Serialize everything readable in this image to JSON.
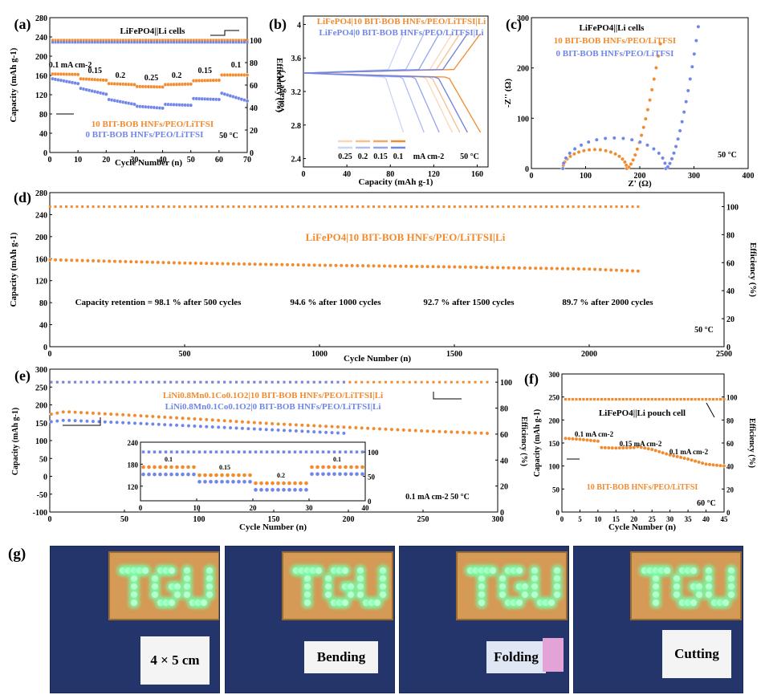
{
  "panels": {
    "a": {
      "letter": "(a)",
      "title": "LiFePO4||Li cells",
      "type": "scatter",
      "xlabel": "Cycle Number (n)",
      "ylabel": "Capacity (mAh g-1)",
      "y2label": "Efficiency (%)",
      "xlim": [
        0,
        70
      ],
      "ylim": [
        0,
        280
      ],
      "y2lim": [
        0,
        120
      ],
      "xticks": [
        0,
        10,
        20,
        30,
        40,
        50,
        60,
        70
      ],
      "yticks": [
        0,
        40,
        80,
        120,
        160,
        200,
        240,
        280
      ],
      "y2ticks": [
        0,
        20,
        40,
        60,
        80,
        100
      ],
      "rate_labels": [
        "0.1 mA cm-2",
        "0.15",
        "0.2",
        "0.25",
        "0.2",
        "0.15",
        "0.1"
      ],
      "legend": [
        "10 BIT-BOB HNFs/PEO/LiTFSI",
        "0 BIT-BOB HNFs/PEO/LiTFSI"
      ],
      "temperature": "50 °C",
      "series": [
        {
          "name": "10 BIT-BOB HNFs/PEO/LiTFSI",
          "color": "#f28a2e",
          "capacity_steps": [
            [
              1,
              10,
              163,
              162
            ],
            [
              11,
              20,
              153,
              150
            ],
            [
              21,
              30,
              143,
              141
            ],
            [
              31,
              40,
              137,
              136
            ],
            [
              41,
              50,
              141,
              142
            ],
            [
              51,
              60,
              149,
              150
            ],
            [
              61,
              70,
              161,
              161
            ]
          ],
          "efficiency": 100
        },
        {
          "name": "0 BIT-BOB HNFs/PEO/LiTFSI",
          "color": "#6f86e8",
          "capacity_steps": [
            [
              1,
              10,
              153,
              143
            ],
            [
              11,
              20,
              133,
              121
            ],
            [
              21,
              30,
              110,
              100
            ],
            [
              31,
              40,
              96,
              92
            ],
            [
              41,
              50,
              100,
              98
            ],
            [
              51,
              60,
              112,
              110
            ],
            [
              61,
              70,
              123,
              107
            ]
          ],
          "efficiency": 98
        }
      ]
    },
    "b": {
      "letter": "(b)",
      "type": "line",
      "xlabel": "Capacity (mAh g-1)",
      "ylabel": "Voltage (V)",
      "xlim": [
        0,
        170
      ],
      "ylim": [
        2.3,
        4.1
      ],
      "xticks": [
        0,
        40,
        80,
        120,
        160
      ],
      "yticks": [
        2.4,
        2.8,
        3.2,
        3.6,
        4.0
      ],
      "legend": [
        "LiFePO4|10 BIT-BOB HNFs/PEO/LiTFSI|Li",
        "LiFePO4|0 BIT-BOB HNFs/PEO/LiTFSI|Li"
      ],
      "rate_legend": [
        "0.25",
        "0.2",
        "0.15",
        "0.1"
      ],
      "rate_unit": "mA cm-2",
      "temperature": "50 °C",
      "series": [
        {
          "name": "10 BIT-BOB HNFs/PEO/LiTFSI",
          "color": "#f28a2e",
          "rates": [
            "0.25",
            "0.2",
            "0.15",
            "0.1"
          ],
          "capacities": [
            137,
            144,
            151,
            163
          ]
        },
        {
          "name": "0 BIT-BOB HNFs/PEO/LiTFSI",
          "color": "#6f86e8",
          "rates": [
            "0.25",
            "0.2",
            "0.15",
            "0.1"
          ],
          "capacities": [
            92,
            111,
            125,
            151
          ]
        }
      ]
    },
    "c": {
      "letter": "(c)",
      "title": "LiFePO4||Li cells",
      "type": "scatter",
      "xlabel": "Z' (Ω)",
      "ylabel": "-Z'' (Ω)",
      "xlim": [
        0,
        400
      ],
      "ylim": [
        0,
        300
      ],
      "xticks": [
        0,
        100,
        200,
        300,
        400
      ],
      "yticks": [
        0,
        100,
        200,
        300
      ],
      "legend": [
        "10 BIT-BOB HNFs/PEO/LiTFSI",
        "0 BIT-BOB HNFs/PEO/LiTFSI"
      ],
      "temperature": "50 °C",
      "series": [
        {
          "name": "10 BIT-BOB HNFs/PEO/LiTFSI",
          "color": "#f28a2e",
          "r0": 58,
          "r_arc": 118,
          "tail_end": [
            238,
            248
          ]
        },
        {
          "name": "0 BIT-BOB HNFs/PEO/LiTFSI",
          "color": "#6f86e8",
          "r0": 58,
          "r_arc": 190,
          "tail_end": [
            308,
            282
          ]
        }
      ]
    },
    "d": {
      "letter": "(d)",
      "title": "LiFePO4|10 BIT-BOB HNFs/PEO/LiTFSI|Li",
      "type": "scatter",
      "xlabel": "Cycle Number (n)",
      "ylabel": "Capacity (mAh g-1)",
      "y2label": "Efficiency (%)",
      "xlim": [
        0,
        2500
      ],
      "ylim": [
        0,
        280
      ],
      "y2lim": [
        0,
        110
      ],
      "xticks": [
        0,
        500,
        1000,
        1500,
        2000,
        2500
      ],
      "yticks": [
        0,
        40,
        80,
        120,
        160,
        200,
        240,
        280
      ],
      "y2ticks": [
        0,
        20,
        40,
        60,
        80,
        100
      ],
      "annotations": [
        "Capacity retention = 98.1 % after 500 cycles",
        "94.6 % after 1000 cycles",
        "92.7 % after 1500 cycles",
        "89.7 % after 2000 cycles"
      ],
      "temperature": "50 °C",
      "series": [
        {
          "name": "capacity",
          "color": "#f28a2e",
          "x": [
            1,
            250,
            500,
            1000,
            1500,
            2000,
            2200
          ],
          "y": [
            158,
            155,
            152,
            148,
            145,
            141,
            137
          ]
        },
        {
          "name": "efficiency",
          "color": "#f28a2e",
          "x": [
            1,
            2200
          ],
          "y": [
            100,
            100
          ]
        }
      ]
    },
    "e": {
      "letter": "(e)",
      "type": "scatter",
      "xlabel": "Cycle Number (n)",
      "ylabel": "Capacity (mAh g-1)",
      "y2label": "Efficiency (%)",
      "xlim": [
        0,
        300
      ],
      "ylim": [
        -100,
        300
      ],
      "y2lim": [
        0,
        110
      ],
      "xticks": [
        0,
        50,
        100,
        150,
        200,
        250,
        300
      ],
      "yticks": [
        -100,
        -50,
        0,
        50,
        100,
        150,
        200,
        250,
        300
      ],
      "y2ticks": [
        0,
        20,
        40,
        60,
        80,
        100
      ],
      "legend": [
        "LiNi0.8Mn0.1Co0.1O2|10 BIT-BOB HNFs/PEO/LiTFSI|Li",
        "LiNi0.8Mn0.1Co0.1O2|0 BIT-BOB HNFs/PEO/LiTFSI|Li"
      ],
      "condition": "0.1 mA cm-2  50 °C",
      "series": [
        {
          "name": "10 BIT-BOB HNFs/PEO/LiTFSI",
          "color": "#f28a2e",
          "x": [
            1,
            10,
            50,
            100,
            150,
            200,
            250,
            295
          ],
          "y": [
            174,
            181,
            172,
            160,
            147,
            137,
            127,
            120
          ],
          "efficiency": 100
        },
        {
          "name": "0 BIT-BOB HNFs/PEO/LiTFSI",
          "color": "#6f86e8",
          "x": [
            1,
            10,
            50,
            100,
            150,
            200
          ],
          "y": [
            153,
            157,
            150,
            140,
            130,
            120
          ],
          "efficiency": 100
        }
      ],
      "inset": {
        "xlim": [
          0,
          40
        ],
        "ylim": [
          80,
          240
        ],
        "y2lim": [
          0,
          120
        ],
        "xticks": [
          0,
          10,
          20,
          30,
          40
        ],
        "yticks": [
          120,
          180,
          240
        ],
        "y2ticks": [
          0,
          50,
          100
        ],
        "rate_labels": [
          "0.1",
          "0.15",
          "0.2",
          "0.1"
        ],
        "steps_orange": [
          [
            1,
            10,
            172
          ],
          [
            11,
            20,
            150
          ],
          [
            21,
            30,
            128
          ],
          [
            31,
            40,
            172
          ]
        ],
        "steps_blue": [
          [
            1,
            10,
            152
          ],
          [
            11,
            20,
            132
          ],
          [
            21,
            30,
            110
          ],
          [
            31,
            40,
            153
          ]
        ]
      }
    },
    "f": {
      "letter": "(f)",
      "title": "LiFePO4||Li pouch cell",
      "type": "scatter",
      "xlabel": "Cycle Number (n)",
      "ylabel": "Capacity (mAh g-1)",
      "y2label": "Efficiency (%)",
      "xlim": [
        0,
        45
      ],
      "ylim": [
        0,
        300
      ],
      "y2lim": [
        0,
        120
      ],
      "xticks": [
        0,
        5,
        10,
        15,
        20,
        25,
        30,
        35,
        40,
        45
      ],
      "yticks": [
        0,
        50,
        100,
        150,
        200,
        250,
        300
      ],
      "y2ticks": [
        0,
        20,
        40,
        60,
        80,
        100
      ],
      "rate_labels": [
        "0.1 mA cm-2",
        "0.15 mA cm-2",
        "0.1 mA cm-2"
      ],
      "legend": [
        "10 BIT-BOB HNFs/PEO/LiTFSI"
      ],
      "temperature": "60 °C",
      "series": [
        {
          "name": "10 BIT-BOB HNFs/PEO/LiTFSI",
          "color": "#f28a2e",
          "x": [
            1,
            5,
            10,
            11,
            15,
            20,
            21,
            25,
            30,
            35,
            40,
            45
          ],
          "y": [
            160,
            158,
            154,
            140,
            139,
            140,
            142,
            136,
            124,
            115,
            104,
            100
          ],
          "efficiency": 98
        }
      ]
    }
  },
  "photos": {
    "letter": "(g)",
    "board_text": "TGU",
    "labels": [
      "4 × 5 cm",
      "Bending",
      "Folding",
      "Cutting"
    ]
  }
}
